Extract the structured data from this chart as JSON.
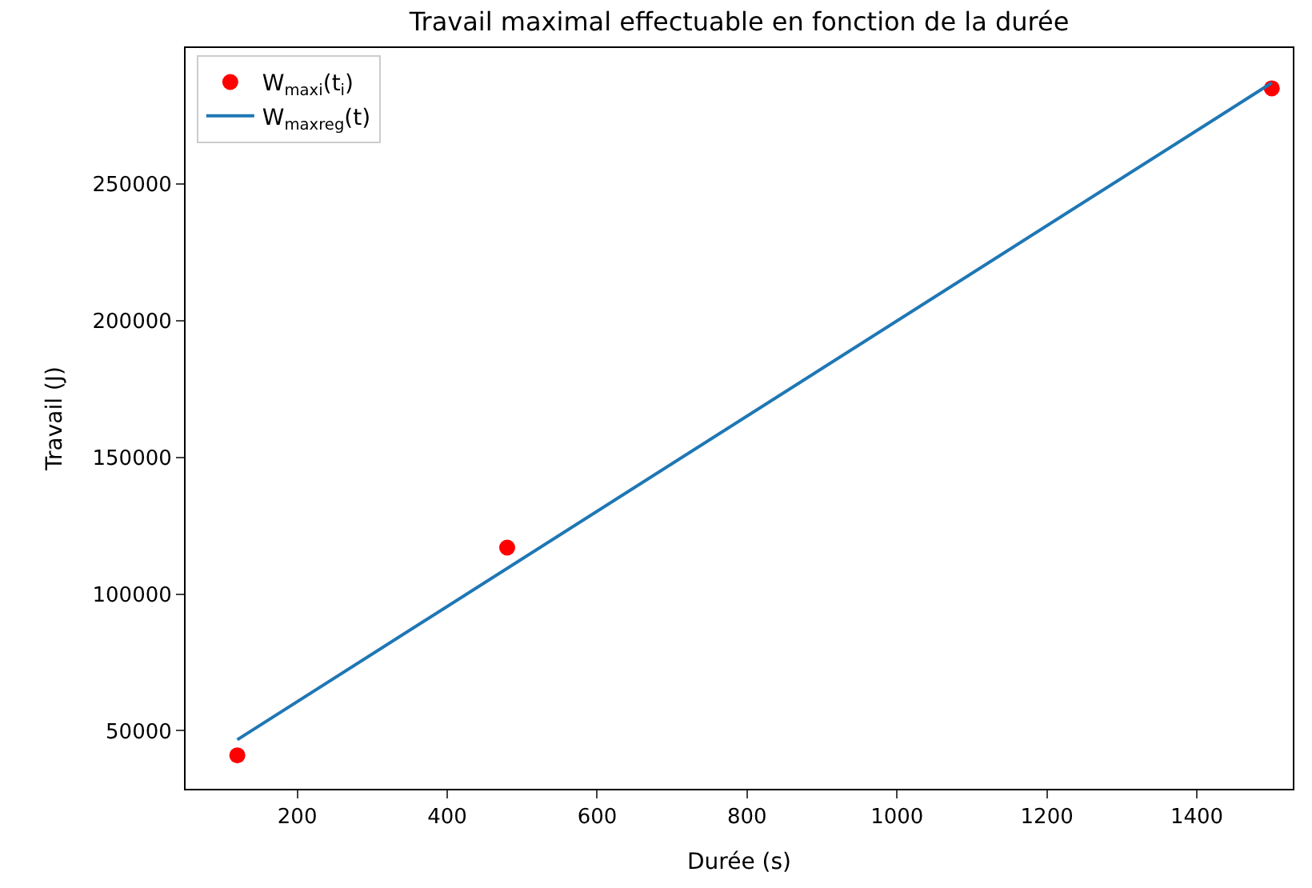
{
  "chart_data": {
    "type": "scatter",
    "title": "Travail maximal effectuable en fonction de la durée",
    "xlabel": "Durée (s)",
    "ylabel": "Travail (J)",
    "series": [
      {
        "name": "W$_{max}$$_{i}$(t$_{i}$)",
        "color": "#ff0000",
        "marker": "circle",
        "x": [
          120,
          480,
          1500
        ],
        "values": [
          41000,
          117000,
          285000
        ]
      },
      {
        "name": "W$_{max}$$_{reg}$(t)",
        "type": "line",
        "color": "#1f77b4",
        "x": [
          120,
          1500
        ],
        "values": [
          46700,
          287000
        ]
      }
    ],
    "xlim": [
      51,
      1528
    ],
    "ylim": [
      28750,
      299750
    ],
    "xticks": [
      200,
      400,
      600,
      800,
      1000,
      1200,
      1400
    ],
    "yticks": [
      50000,
      100000,
      150000,
      200000,
      250000
    ],
    "legend": "top left"
  }
}
